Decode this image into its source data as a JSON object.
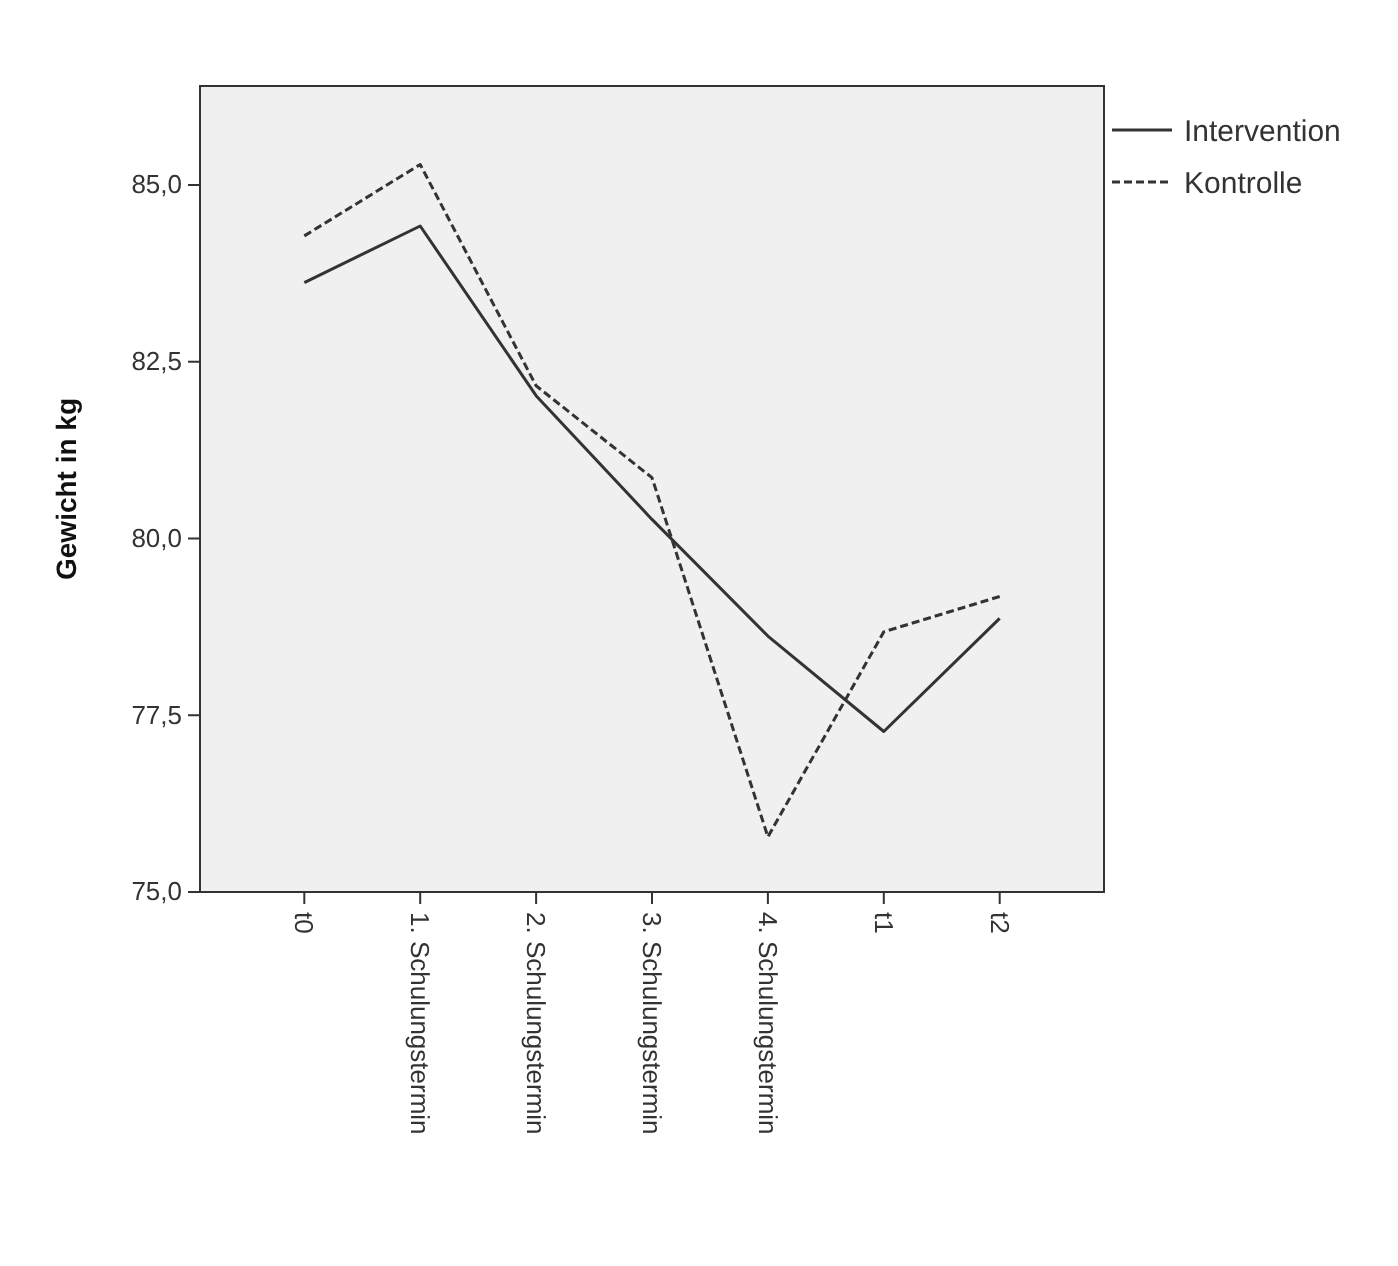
{
  "chart_data": {
    "type": "line",
    "ylabel": "Gewicht in kg",
    "categories": [
      "t0",
      "1. Schulungstermin",
      "2. Schulungstermin",
      "3. Schulungstermin",
      "4. Schulungstermin",
      "t1",
      "t2"
    ],
    "series": [
      {
        "name": "Intervention",
        "color": "#333333",
        "line_style": "solid",
        "values": [
          83.62,
          84.42,
          82.02,
          80.27,
          78.62,
          77.27,
          78.87
        ]
      },
      {
        "name": "Kontrolle",
        "color": "#333333",
        "line_style": "dashed",
        "values": [
          84.28,
          85.29,
          82.16,
          80.86,
          75.78,
          78.68,
          79.18
        ]
      }
    ],
    "ylim": [
      75,
      86.4
    ],
    "yticks": [
      {
        "value": 75,
        "label": "75,0"
      },
      {
        "value": 77.5,
        "label": "77,5"
      },
      {
        "value": 80,
        "label": "80,0"
      },
      {
        "value": 82.5,
        "label": "82,5"
      },
      {
        "value": 85,
        "label": "85,0"
      }
    ],
    "legend": "top right",
    "marker": "none",
    "grid": false
  }
}
